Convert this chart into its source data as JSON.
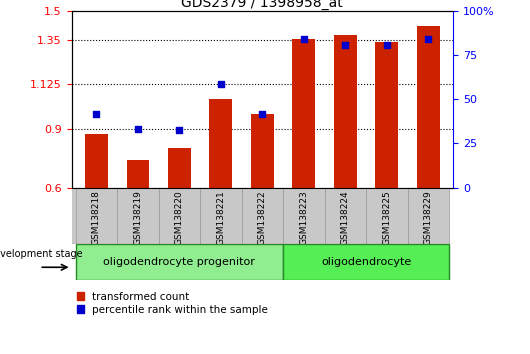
{
  "title": "GDS2379 / 1398958_at",
  "samples": [
    "GSM138218",
    "GSM138219",
    "GSM138220",
    "GSM138221",
    "GSM138222",
    "GSM138223",
    "GSM138224",
    "GSM138225",
    "GSM138229"
  ],
  "red_values": [
    0.875,
    0.74,
    0.8,
    1.05,
    0.975,
    1.355,
    1.375,
    1.34,
    1.42
  ],
  "blue_values": [
    0.975,
    0.9,
    0.895,
    1.125,
    0.975,
    1.355,
    1.325,
    1.325,
    1.355
  ],
  "ylim_left": [
    0.6,
    1.5
  ],
  "ylim_right": [
    0,
    100
  ],
  "yticks_left": [
    0.6,
    0.9,
    1.125,
    1.35,
    1.5
  ],
  "ytick_labels_left": [
    "0.6",
    "0.9",
    "1.125",
    "1.35",
    "1.5"
  ],
  "yticks_right": [
    0,
    25,
    50,
    75,
    100
  ],
  "ytick_labels_right": [
    "0",
    "25",
    "50",
    "75",
    "100%"
  ],
  "bar_color": "#CC2200",
  "dot_color": "#0000CC",
  "bar_bottom": 0.6,
  "dotted_lines": [
    0.9,
    1.125,
    1.35
  ],
  "group1_label": "oligodendrocyte progenitor",
  "group2_label": "oligodendrocyte",
  "group1_color": "#90EE90",
  "group2_color": "#55EE55",
  "stage_label": "development stage",
  "legend_red": "transformed count",
  "legend_blue": "percentile rank within the sample",
  "bar_width": 0.55,
  "tick_area_color": "#C8C8C8",
  "background_color": "#FFFFFF"
}
